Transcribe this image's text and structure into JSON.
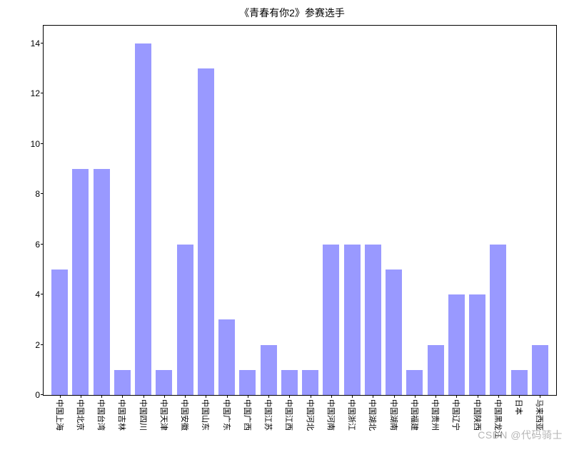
{
  "chart": {
    "type": "bar",
    "title": "《青春有你2》参赛选手",
    "title_fontsize": 14,
    "background_color": "#ffffff",
    "bar_color": "#9999ff",
    "border_color": "#000000",
    "text_color": "#000000",
    "xtick_rotation": 90,
    "xtick_fontsize": 11,
    "ytick_fontsize": 12,
    "ylim": [
      0,
      14.7
    ],
    "yticks": [
      0,
      2,
      4,
      6,
      8,
      10,
      12,
      14
    ],
    "bar_width": 0.78,
    "categories": [
      "中国上海",
      "中国北京",
      "中国台湾",
      "中国吉林",
      "中国四川",
      "中国天津",
      "中国安徽",
      "中国山东",
      "中国广东",
      "中国广西",
      "中国江苏",
      "中国江西",
      "中国河北",
      "中国河南",
      "中国浙江",
      "中国湖北",
      "中国湖南",
      "中国福建",
      "中国贵州",
      "中国辽宁",
      "中国陕西",
      "中国黑龙江",
      "日本",
      "马来西亚"
    ],
    "values": [
      5,
      9,
      9,
      1,
      14,
      1,
      6,
      13,
      3,
      1,
      2,
      1,
      1,
      6,
      6,
      6,
      5,
      1,
      2,
      4,
      4,
      6,
      1,
      2
    ]
  },
  "watermark": "CSDN @代码骑士"
}
